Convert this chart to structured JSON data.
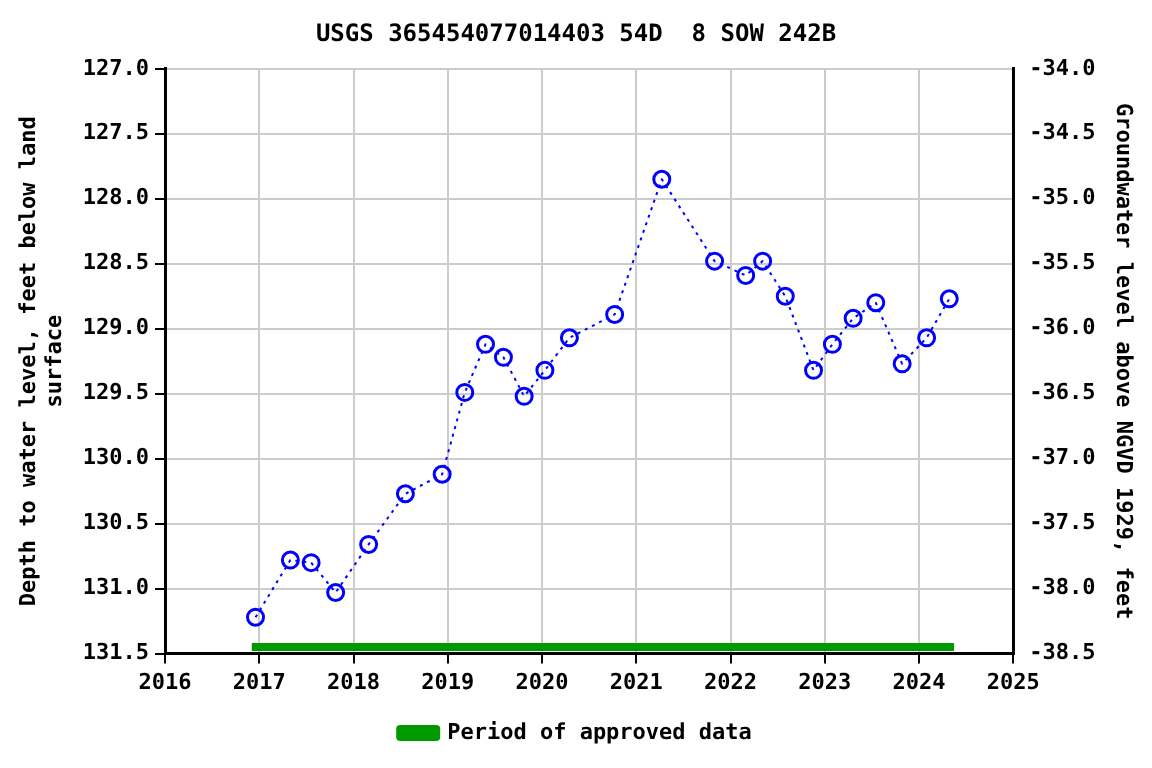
{
  "chart_data": {
    "type": "line",
    "title": "USGS 365454077014403 54D  8 SOW 242B",
    "ylabel": "Depth to water level, feet below land surface",
    "y2label": "Groundwater level above NGVD 1929, feet",
    "xlim": [
      2016,
      2025
    ],
    "xticks": [
      2016,
      2017,
      2018,
      2019,
      2020,
      2021,
      2022,
      2023,
      2024,
      2025
    ],
    "ylim": [
      131.5,
      127.0
    ],
    "yticks": [
      {
        "value": 127,
        "label": "127.0"
      },
      {
        "value": 127.5,
        "label": "127.5"
      },
      {
        "value": 128,
        "label": "128.0"
      },
      {
        "value": 128.5,
        "label": "128.5"
      },
      {
        "value": 129,
        "label": "129.0"
      },
      {
        "value": 129.5,
        "label": "129.5"
      },
      {
        "value": 130,
        "label": "130.0"
      },
      {
        "value": 130.5,
        "label": "130.5"
      },
      {
        "value": 131,
        "label": "131.0"
      },
      {
        "value": 131.5,
        "label": "131.5"
      }
    ],
    "y2lim": [
      -38.5,
      -34.0
    ],
    "y2ticks": [
      {
        "value": -34,
        "label": "-34.0"
      },
      {
        "value": -34.5,
        "label": "-34.5"
      },
      {
        "value": -35,
        "label": "-35.0"
      },
      {
        "value": -35.5,
        "label": "-35.5"
      },
      {
        "value": -36,
        "label": "-36.0"
      },
      {
        "value": -36.5,
        "label": "-36.5"
      },
      {
        "value": -37,
        "label": "-37.0"
      },
      {
        "value": -37.5,
        "label": "-37.5"
      },
      {
        "value": -38,
        "label": "-38.0"
      },
      {
        "value": -38.5,
        "label": "-38.5"
      }
    ],
    "grid": true,
    "legend": "bottom",
    "series": [
      {
        "color": "#0000ff",
        "marker": "circle",
        "line_style": "dotted",
        "x": [
          2016.96,
          2017.33,
          2017.55,
          2017.81,
          2018.16,
          2018.55,
          2018.94,
          2019.18,
          2019.4,
          2019.59,
          2019.81,
          2020.03,
          2020.29,
          2020.77,
          2021.27,
          2021.83,
          2022.16,
          2022.34,
          2022.58,
          2022.88,
          2023.08,
          2023.3,
          2023.54,
          2023.82,
          2024.08,
          2024.32
        ],
        "values": [
          131.22,
          130.78,
          130.8,
          131.03,
          130.66,
          130.27,
          130.12,
          129.49,
          129.12,
          129.22,
          129.52,
          129.32,
          129.07,
          128.89,
          127.85,
          128.48,
          128.59,
          128.48,
          128.75,
          129.32,
          129.12,
          128.92,
          128.8,
          129.27,
          129.07,
          128.77
        ]
      },
      {
        "name": "Period of approved data",
        "color": "#009900",
        "marker": "none",
        "line_style": "solid",
        "x": [
          2016.92,
          2024.37
        ],
        "values": [
          131.45,
          131.45
        ]
      }
    ]
  }
}
